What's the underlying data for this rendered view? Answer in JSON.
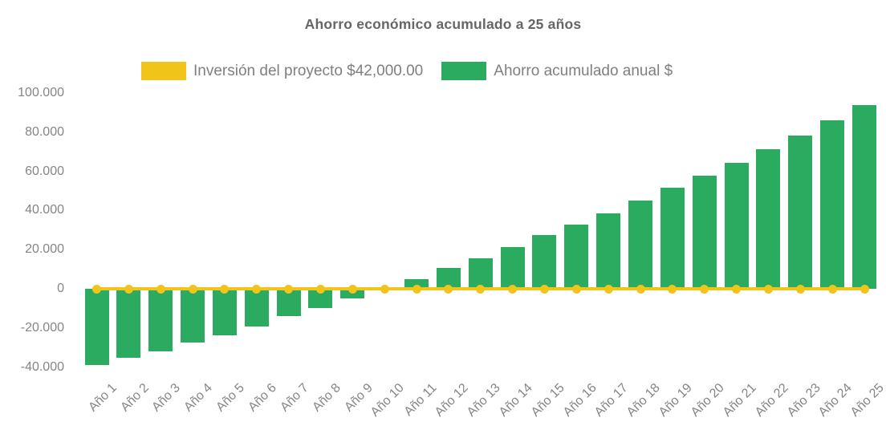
{
  "title": "Ahorro económico acumulado a 25 años",
  "colors": {
    "investment_yellow": "#F0C419",
    "savings_green": "#2BAB60",
    "title_gray": "#666666",
    "label_gray": "#858585",
    "legend_text_gray": "#7f7f7f",
    "background": "#ffffff"
  },
  "legend": {
    "items": [
      {
        "label": "Inversión del proyecto $42,000.00",
        "color": "#F0C419",
        "marker": "box"
      },
      {
        "label": "Ahorro acumulado anual $",
        "color": "#2BAB60",
        "marker": "box"
      }
    ]
  },
  "chart_data": {
    "type": "bar",
    "title": "Ahorro económico acumulado a 25 años",
    "xlabel": "",
    "ylabel": "",
    "categories": [
      "Año 1",
      "Año 2",
      "Año 3",
      "Año 4",
      "Año 5",
      "Año 6",
      "Año 7",
      "Año 8",
      "Año 9",
      "Año 10",
      "Año 11",
      "Año 12",
      "Año 13",
      "Año 14",
      "Año 15",
      "Año 16",
      "Año 17",
      "Año 18",
      "Año 19",
      "Año 20",
      "Año 21",
      "Año 22",
      "Año 23",
      "Año 24",
      "Año 25"
    ],
    "series": [
      {
        "name": "Ahorro acumulado anual $",
        "type": "bar",
        "color": "#2BAB60",
        "values": [
          -39000,
          -35200,
          -31900,
          -27600,
          -23900,
          -19400,
          -14100,
          -10000,
          -5000,
          -1000,
          5000,
          10800,
          15600,
          21500,
          27300,
          32800,
          38600,
          44900,
          51500,
          57800,
          64400,
          71300,
          78400,
          86000,
          93700
        ]
      },
      {
        "name": "Inversión del proyecto $42,000.00",
        "type": "line",
        "color": "#F0C419",
        "note": "flat break-even line with a point marker at every year",
        "values": [
          0,
          0,
          0,
          0,
          0,
          0,
          0,
          0,
          0,
          0,
          0,
          0,
          0,
          0,
          0,
          0,
          0,
          0,
          0,
          0,
          0,
          0,
          0,
          0,
          0
        ]
      }
    ],
    "ylim": [
      -40000,
      100000
    ],
    "yticks": [
      {
        "value": -40000,
        "label": "-40.000"
      },
      {
        "value": -20000,
        "label": "-20.000"
      },
      {
        "value": 0,
        "label": "0"
      },
      {
        "value": 20000,
        "label": "20.000"
      },
      {
        "value": 40000,
        "label": "40.000"
      },
      {
        "value": 60000,
        "label": "60.000"
      },
      {
        "value": 80000,
        "label": "80.000"
      },
      {
        "value": 100000,
        "label": "100.000"
      }
    ],
    "grid": false,
    "legend_position": "top",
    "x_label_rotation": -45
  }
}
